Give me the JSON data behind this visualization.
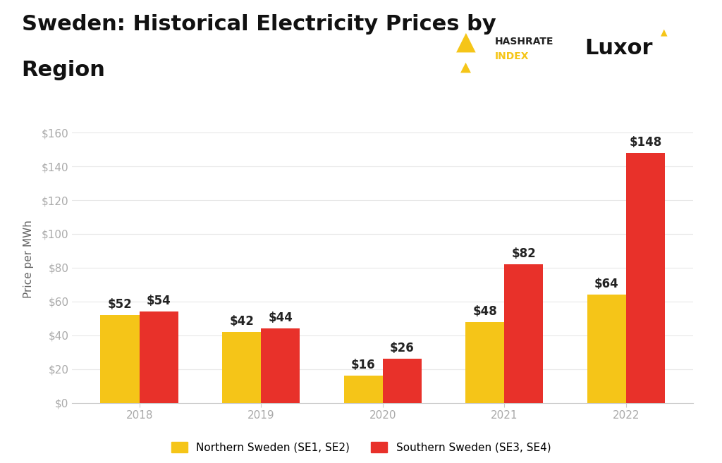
{
  "title_line1": "Sweden: Historical Electricity Prices by",
  "title_line2": "Region",
  "ylabel": "Price per MWh",
  "years": [
    "2018",
    "2019",
    "2020",
    "2021",
    "2022"
  ],
  "north_values": [
    52,
    42,
    16,
    48,
    64
  ],
  "south_values": [
    54,
    44,
    26,
    82,
    148
  ],
  "north_color": "#F5C518",
  "south_color": "#E8312A",
  "ylim": [
    0,
    170
  ],
  "yticks": [
    0,
    20,
    40,
    60,
    80,
    100,
    120,
    140,
    160
  ],
  "ytick_labels": [
    "$0",
    "$20",
    "$40",
    "$60",
    "$80",
    "$100",
    "$120",
    "$140",
    "$160"
  ],
  "background_color": "#ffffff",
  "legend_north": "Northern Sweden (SE1, SE2)",
  "legend_south": "Southern Sweden (SE3, SE4)",
  "bar_width": 0.32,
  "title_fontsize": 22,
  "axis_label_fontsize": 11,
  "tick_fontsize": 11,
  "label_fontsize": 12,
  "legend_fontsize": 11,
  "tick_color": "#aaaaaa",
  "grid_color": "#e8e8e8",
  "label_color": "#222222",
  "spine_color": "#cccccc"
}
